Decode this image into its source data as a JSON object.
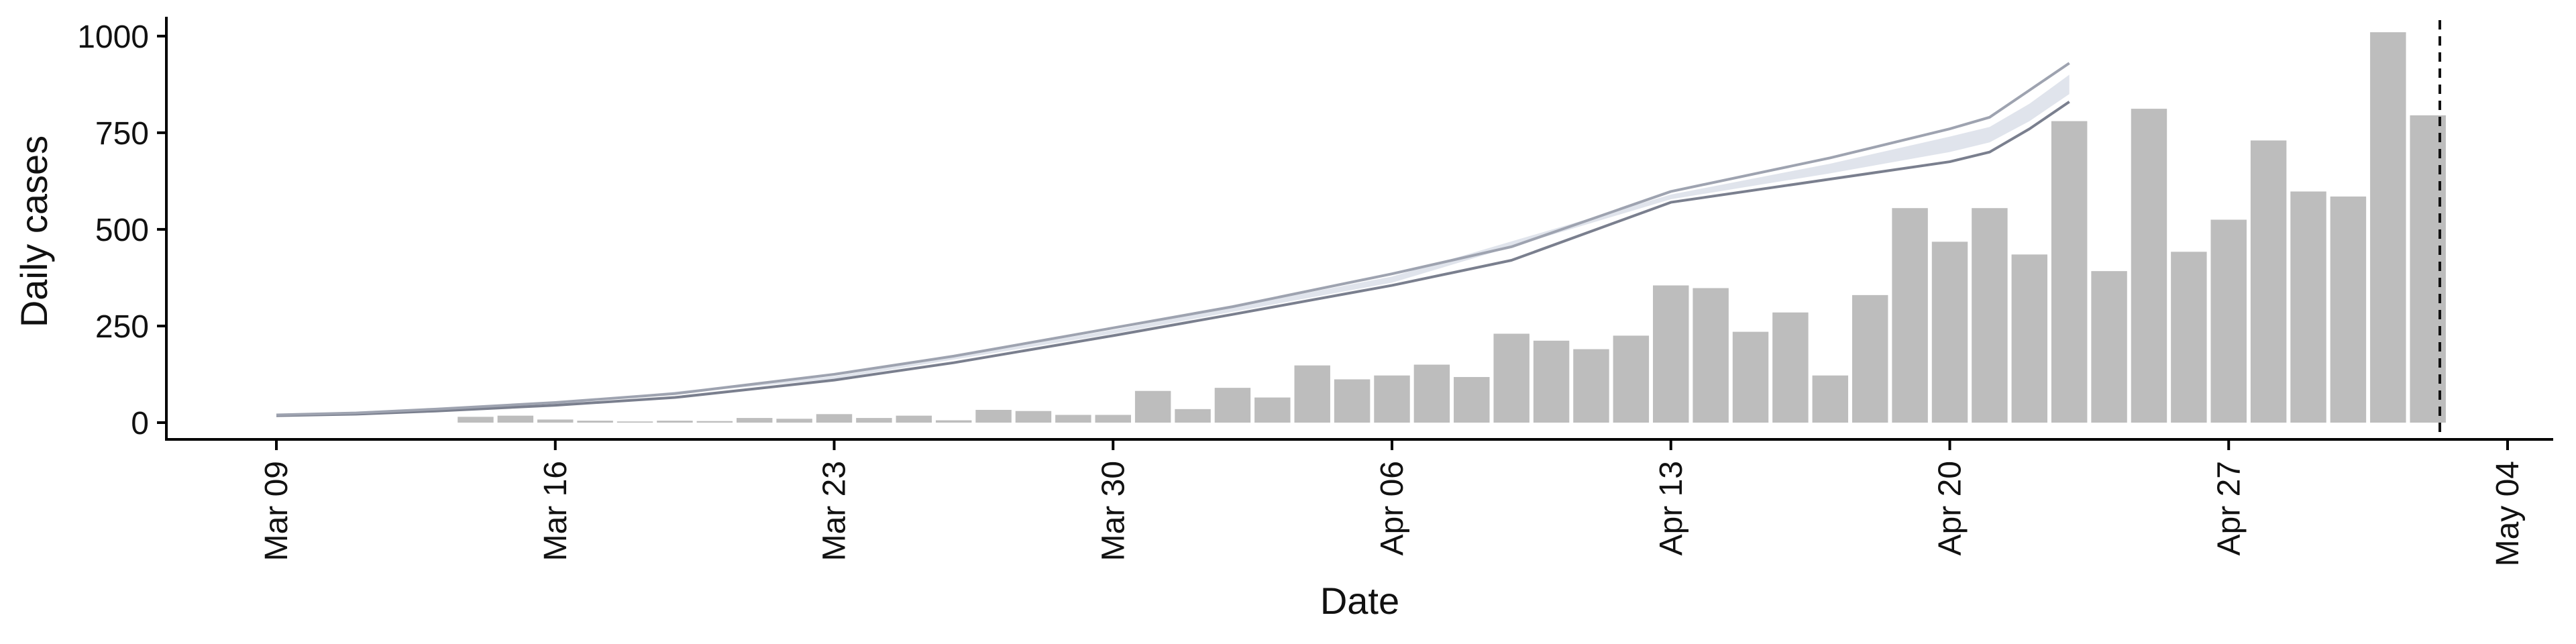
{
  "chart_data": {
    "type": "bar",
    "xlabel": "Date",
    "ylabel": "Daily cases",
    "ylim": [
      0,
      1050
    ],
    "xlim": [
      "2020-03-09",
      "2020-05-04"
    ],
    "yticks": [
      0,
      250,
      500,
      750,
      1000
    ],
    "xticks": [
      {
        "date": "2020-03-09",
        "label": "Mar 09"
      },
      {
        "date": "2020-03-16",
        "label": "Mar 16"
      },
      {
        "date": "2020-03-23",
        "label": "Mar 23"
      },
      {
        "date": "2020-03-30",
        "label": "Mar 30"
      },
      {
        "date": "2020-04-06",
        "label": "Apr 06"
      },
      {
        "date": "2020-04-13",
        "label": "Apr 13"
      },
      {
        "date": "2020-04-20",
        "label": "Apr 20"
      },
      {
        "date": "2020-04-27",
        "label": "Apr 27"
      },
      {
        "date": "2020-05-04",
        "label": "May 04"
      }
    ],
    "grid": false,
    "bars": {
      "color": "#bdbdbd",
      "dates": [
        "2020-03-14",
        "2020-03-15",
        "2020-03-16",
        "2020-03-17",
        "2020-03-18",
        "2020-03-19",
        "2020-03-20",
        "2020-03-21",
        "2020-03-22",
        "2020-03-23",
        "2020-03-24",
        "2020-03-25",
        "2020-03-26",
        "2020-03-27",
        "2020-03-28",
        "2020-03-29",
        "2020-03-30",
        "2020-03-31",
        "2020-04-01",
        "2020-04-02",
        "2020-04-03",
        "2020-04-04",
        "2020-04-05",
        "2020-04-06",
        "2020-04-07",
        "2020-04-08",
        "2020-04-09",
        "2020-04-10",
        "2020-04-11",
        "2020-04-12",
        "2020-04-13",
        "2020-04-14",
        "2020-04-15",
        "2020-04-16",
        "2020-04-17",
        "2020-04-18",
        "2020-04-19",
        "2020-04-20",
        "2020-04-21",
        "2020-04-22",
        "2020-04-23",
        "2020-04-24",
        "2020-04-25",
        "2020-04-26",
        "2020-04-27",
        "2020-04-28",
        "2020-04-29",
        "2020-04-30",
        "2020-05-01",
        "2020-05-02",
        "2020-05-03"
      ],
      "values": [
        15,
        18,
        8,
        5,
        3,
        5,
        4,
        12,
        10,
        22,
        12,
        18,
        6,
        33,
        30,
        20,
        20,
        82,
        35,
        90,
        65,
        148,
        112,
        122,
        150,
        118,
        230,
        212,
        190,
        225,
        355,
        348,
        235,
        285,
        122,
        330,
        555,
        468,
        555,
        435,
        780,
        392,
        812,
        442,
        525,
        730,
        598,
        585,
        1010,
        795,
        0
      ]
    },
    "series": [
      {
        "kind": "line",
        "color": "#7a7f8e",
        "dates": [
          "2020-03-09",
          "2020-03-11",
          "2020-03-13",
          "2020-03-16",
          "2020-03-19",
          "2020-03-23",
          "2020-03-26",
          "2020-03-30",
          "2020-04-02",
          "2020-04-06",
          "2020-04-09",
          "2020-04-13",
          "2020-04-17",
          "2020-04-20",
          "2020-04-21",
          "2020-04-22",
          "2020-04-23"
        ],
        "values": [
          18,
          22,
          30,
          45,
          65,
          110,
          155,
          225,
          280,
          355,
          420,
          570,
          630,
          675,
          700,
          760,
          830
        ]
      },
      {
        "kind": "line",
        "color": "#9ea3b0",
        "dates": [
          "2020-03-09",
          "2020-03-11",
          "2020-03-13",
          "2020-03-16",
          "2020-03-19",
          "2020-03-23",
          "2020-03-26",
          "2020-03-30",
          "2020-04-02",
          "2020-04-06",
          "2020-04-09",
          "2020-04-13",
          "2020-04-17",
          "2020-04-20",
          "2020-04-21",
          "2020-04-22",
          "2020-04-23"
        ],
        "values": [
          20,
          25,
          35,
          52,
          75,
          125,
          172,
          245,
          300,
          385,
          455,
          598,
          685,
          760,
          790,
          860,
          930
        ]
      },
      {
        "kind": "band",
        "color": "#dde1ea",
        "dates": [
          "2020-03-09",
          "2020-03-16",
          "2020-03-23",
          "2020-03-30",
          "2020-04-06",
          "2020-04-13",
          "2020-04-17",
          "2020-04-20",
          "2020-04-21",
          "2020-04-22",
          "2020-04-23"
        ],
        "lower": [
          18,
          47,
          113,
          230,
          362,
          578,
          645,
          700,
          725,
          780,
          850
        ],
        "upper": [
          20,
          50,
          120,
          240,
          378,
          590,
          670,
          740,
          765,
          825,
          900
        ]
      }
    ],
    "annotations": [
      {
        "kind": "vline",
        "date": "2020-05-02",
        "style": "dashed",
        "color": "#111111"
      }
    ]
  }
}
